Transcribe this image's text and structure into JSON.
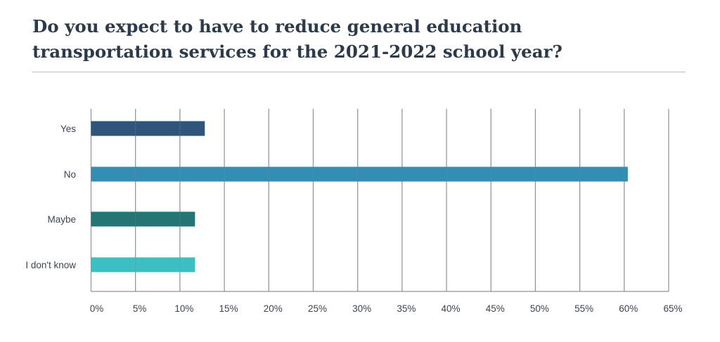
{
  "chart_data": {
    "type": "bar",
    "orientation": "horizontal",
    "title": "Do you expect to have to reduce general education transportation services for the 2021-2022 school year?",
    "categories": [
      "Yes",
      "No",
      "Maybe",
      "I don't know"
    ],
    "values": [
      12.8,
      60.4,
      11.7,
      11.7
    ],
    "colors": [
      "#30557b",
      "#348db3",
      "#257574",
      "#3cbfc3"
    ],
    "xlim": [
      0,
      65
    ],
    "xticks": [
      0,
      5,
      10,
      15,
      20,
      25,
      30,
      35,
      40,
      45,
      50,
      55,
      60,
      65
    ],
    "tick_suffix": "%",
    "grid": "vertical",
    "grid_color": "#7d8794",
    "xlabel": "",
    "ylabel": ""
  }
}
